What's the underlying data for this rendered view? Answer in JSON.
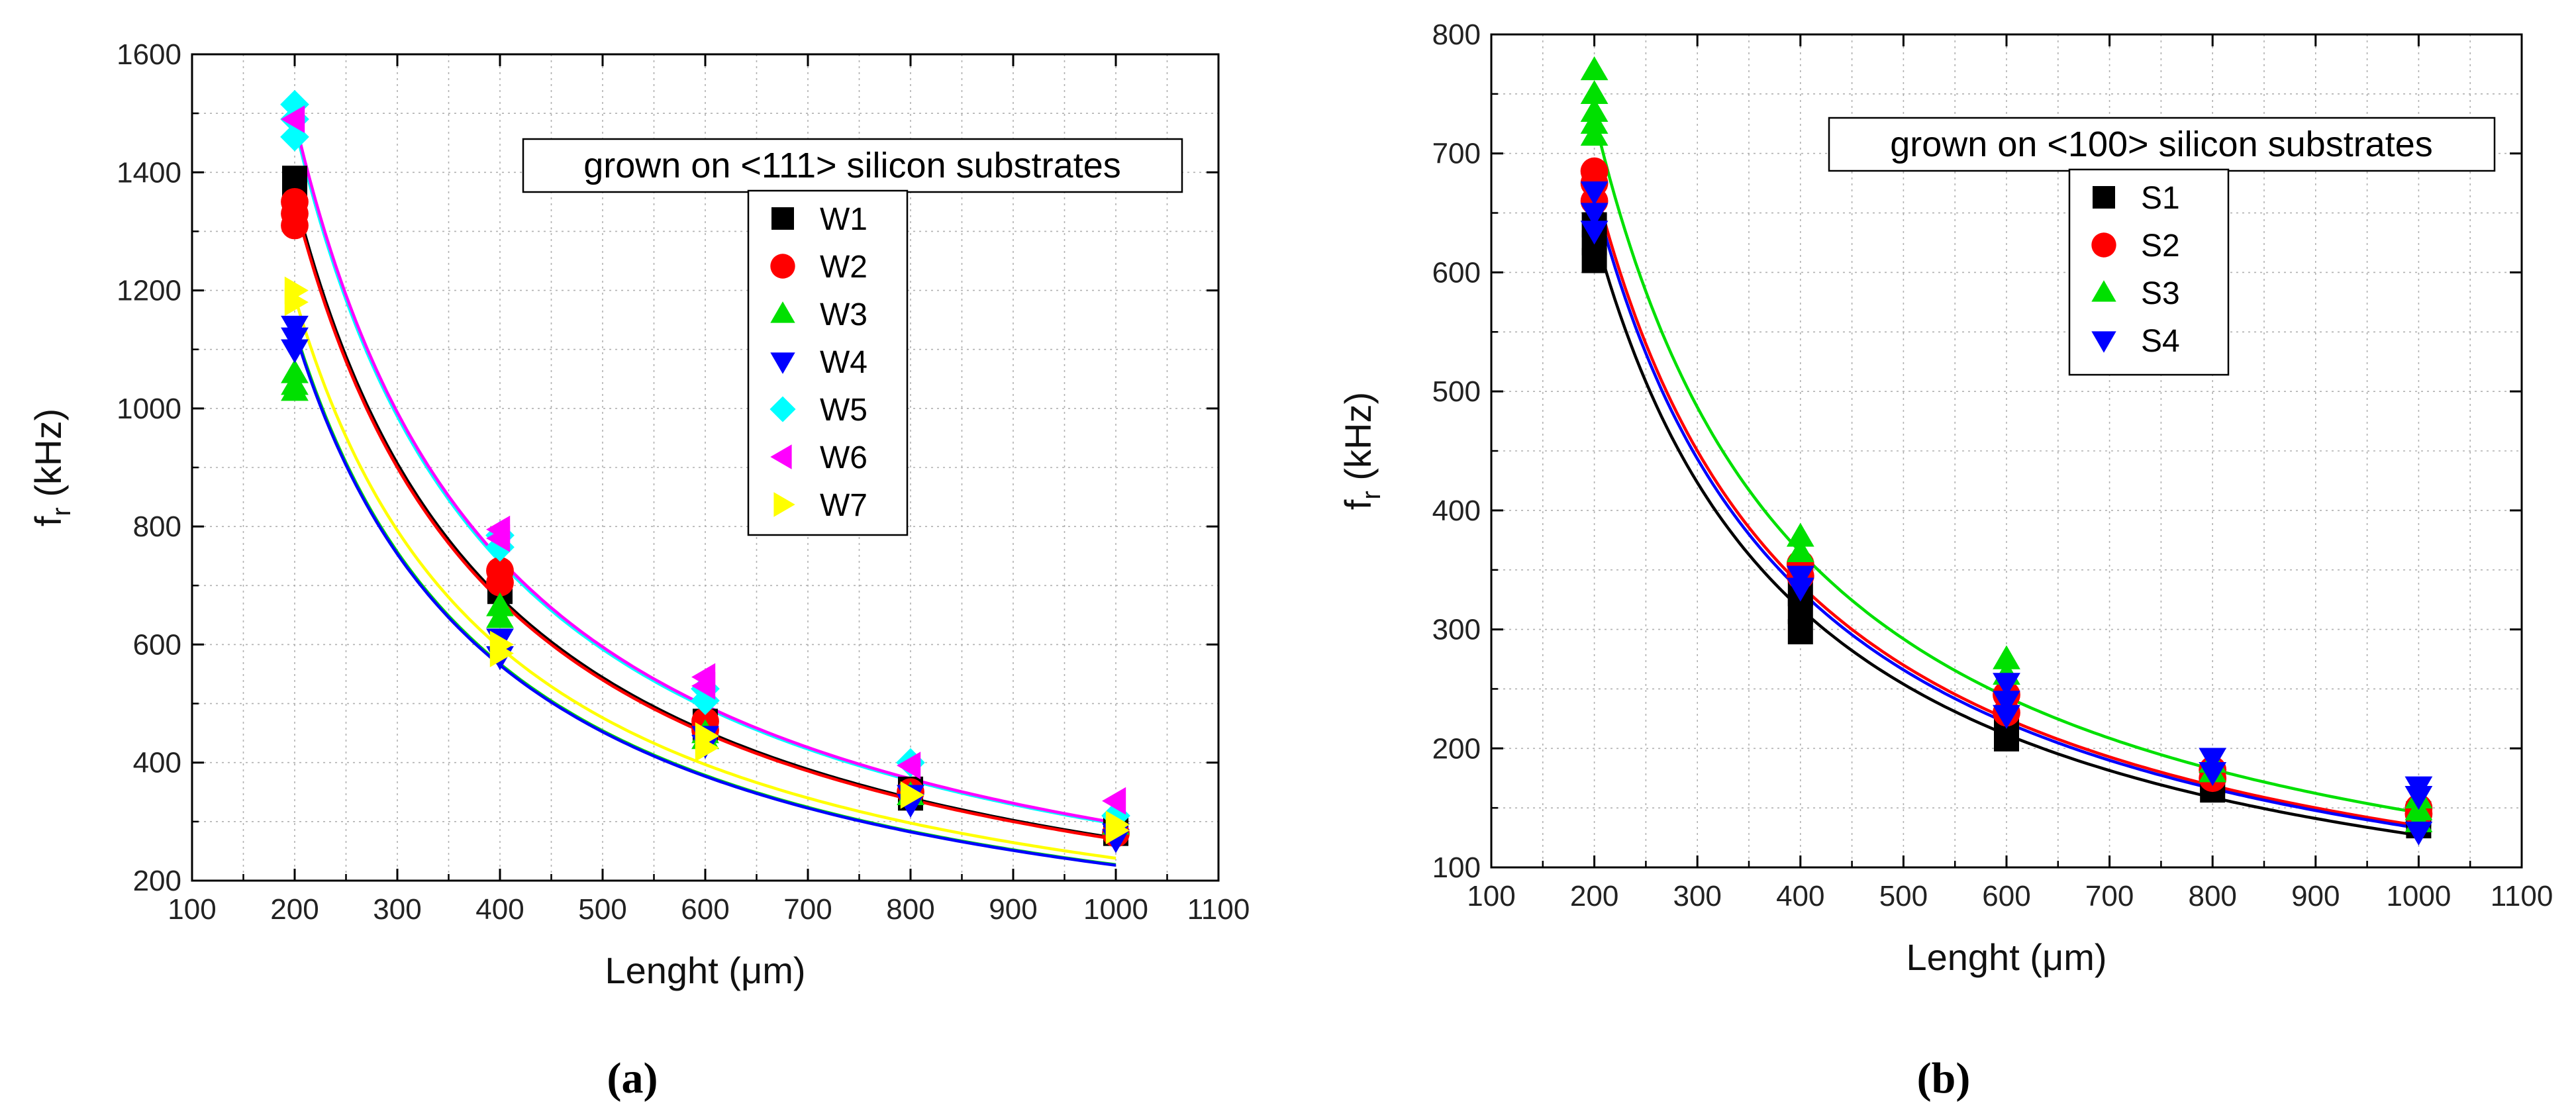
{
  "chart_data": [
    {
      "panel_label": "(a)",
      "type": "scatter",
      "xlabel": "Lenght (μm)",
      "ylabel": "f",
      "ylabel_sub": "r",
      "ylabel_unit": " (kHz)",
      "xlim": [
        100,
        1100
      ],
      "ylim": [
        200,
        1600
      ],
      "xticks": [
        100,
        200,
        300,
        400,
        500,
        600,
        700,
        800,
        900,
        1000,
        1100
      ],
      "yticks": [
        200,
        400,
        600,
        800,
        1000,
        1200,
        1400,
        1600
      ],
      "grid": true,
      "legend_title": "grown on <111> silicon substrates",
      "series": [
        {
          "name": "W1",
          "color": "#000000",
          "marker": "square",
          "points": [
            [
              200,
              1390
            ],
            [
              200,
              1365
            ],
            [
              200,
              1345
            ],
            [
              400,
              710
            ],
            [
              400,
              690
            ],
            [
              600,
              470
            ],
            [
              600,
              455
            ],
            [
              800,
              355
            ],
            [
              800,
              340
            ],
            [
              1000,
              290
            ],
            [
              1000,
              280
            ]
          ],
          "fit_k": 272000
        },
        {
          "name": "W2",
          "color": "#ff0000",
          "marker": "circle",
          "points": [
            [
              200,
              1350
            ],
            [
              200,
              1330
            ],
            [
              200,
              1310
            ],
            [
              400,
              725
            ],
            [
              400,
              705
            ],
            [
              600,
              470
            ],
            [
              600,
              455
            ],
            [
              800,
              350
            ],
            [
              1000,
              280
            ]
          ],
          "fit_k": 270000
        },
        {
          "name": "W3",
          "color": "#00e000",
          "marker": "triangle-up",
          "points": [
            [
              200,
              1060
            ],
            [
              200,
              1040
            ],
            [
              200,
              1030
            ],
            [
              400,
              665
            ],
            [
              400,
              645
            ],
            [
              600,
              450
            ],
            [
              600,
              440
            ],
            [
              800,
              345
            ],
            [
              1000,
              295
            ]
          ],
          "fit_k": 227000
        },
        {
          "name": "W4",
          "color": "#0000ff",
          "marker": "triangle-down",
          "points": [
            [
              200,
              1140
            ],
            [
              200,
              1120
            ],
            [
              200,
              1100
            ],
            [
              400,
              610
            ],
            [
              400,
              580
            ],
            [
              600,
              445
            ],
            [
              600,
              430
            ],
            [
              800,
              345
            ],
            [
              800,
              330
            ],
            [
              1000,
              280
            ],
            [
              1000,
              270
            ]
          ],
          "fit_k": 226000
        },
        {
          "name": "W5",
          "color": "#00ffff",
          "marker": "diamond",
          "points": [
            [
              200,
              1515
            ],
            [
              200,
              1490
            ],
            [
              200,
              1460
            ],
            [
              400,
              785
            ],
            [
              400,
              765
            ],
            [
              600,
              525
            ],
            [
              600,
              505
            ],
            [
              800,
              400
            ],
            [
              1000,
              310
            ]
          ],
          "fit_k": 296000
        },
        {
          "name": "W6",
          "color": "#ff00ff",
          "marker": "triangle-left",
          "points": [
            [
              200,
              1490
            ],
            [
              400,
              795
            ],
            [
              400,
              780
            ],
            [
              600,
              545
            ],
            [
              600,
              530
            ],
            [
              800,
              395
            ],
            [
              1000,
              335
            ]
          ],
          "fit_k": 298000
        },
        {
          "name": "W7",
          "color": "#ffff00",
          "marker": "triangle-right",
          "points": [
            [
              200,
              1200
            ],
            [
              200,
              1180
            ],
            [
              400,
              600
            ],
            [
              400,
              585
            ],
            [
              600,
              445
            ],
            [
              600,
              425
            ],
            [
              800,
              345
            ],
            [
              1000,
              295
            ],
            [
              1000,
              285
            ]
          ],
          "fit_k": 238000
        }
      ]
    },
    {
      "panel_label": "(b)",
      "type": "scatter",
      "xlabel": "Lenght (μm)",
      "ylabel": "f",
      "ylabel_sub": "r",
      "ylabel_unit": " (kHz)",
      "xlim": [
        100,
        1100
      ],
      "ylim": [
        100,
        800
      ],
      "xticks": [
        100,
        200,
        300,
        400,
        500,
        600,
        700,
        800,
        900,
        1000,
        1100
      ],
      "yticks": [
        100,
        200,
        300,
        400,
        500,
        600,
        700,
        800
      ],
      "grid": true,
      "legend_title": "grown on <100> silicon substrates",
      "series": [
        {
          "name": "S1",
          "color": "#000000",
          "marker": "square",
          "points": [
            [
              200,
              640
            ],
            [
              200,
              625
            ],
            [
              200,
              610
            ],
            [
              400,
              330
            ],
            [
              400,
              315
            ],
            [
              400,
              298
            ],
            [
              600,
              225
            ],
            [
              600,
              208
            ],
            [
              800,
              172
            ],
            [
              800,
              165
            ],
            [
              1000,
              145
            ],
            [
              1000,
              135
            ]
          ],
          "fit_k": 127000
        },
        {
          "name": "S2",
          "color": "#ff0000",
          "marker": "circle",
          "points": [
            [
              200,
              685
            ],
            [
              200,
              675
            ],
            [
              200,
              660
            ],
            [
              400,
              355
            ],
            [
              400,
              345
            ],
            [
              600,
              245
            ],
            [
              600,
              230
            ],
            [
              800,
              182
            ],
            [
              800,
              175
            ],
            [
              1000,
              150
            ],
            [
              1000,
              145
            ]
          ],
          "fit_k": 135000
        },
        {
          "name": "S3",
          "color": "#00e000",
          "marker": "triangle-up",
          "points": [
            [
              200,
              770
            ],
            [
              200,
              750
            ],
            [
              200,
              735
            ],
            [
              200,
              725
            ],
            [
              200,
              715
            ],
            [
              400,
              378
            ],
            [
              400,
              365
            ],
            [
              600,
              275
            ],
            [
              600,
              262
            ],
            [
              800,
              188
            ],
            [
              800,
              180
            ],
            [
              1000,
              158
            ],
            [
              1000,
              148
            ],
            [
              1000,
              138
            ]
          ],
          "fit_k": 146000
        },
        {
          "name": "S4",
          "color": "#0000ff",
          "marker": "triangle-down",
          "points": [
            [
              200,
              668
            ],
            [
              200,
              650
            ],
            [
              200,
              635
            ],
            [
              400,
              345
            ],
            [
              400,
              335
            ],
            [
              600,
              255
            ],
            [
              600,
              240
            ],
            [
              600,
              228
            ],
            [
              800,
              192
            ],
            [
              800,
              180
            ],
            [
              1000,
              168
            ],
            [
              1000,
              160
            ],
            [
              1000,
              130
            ]
          ],
          "fit_k": 133000
        }
      ]
    }
  ]
}
